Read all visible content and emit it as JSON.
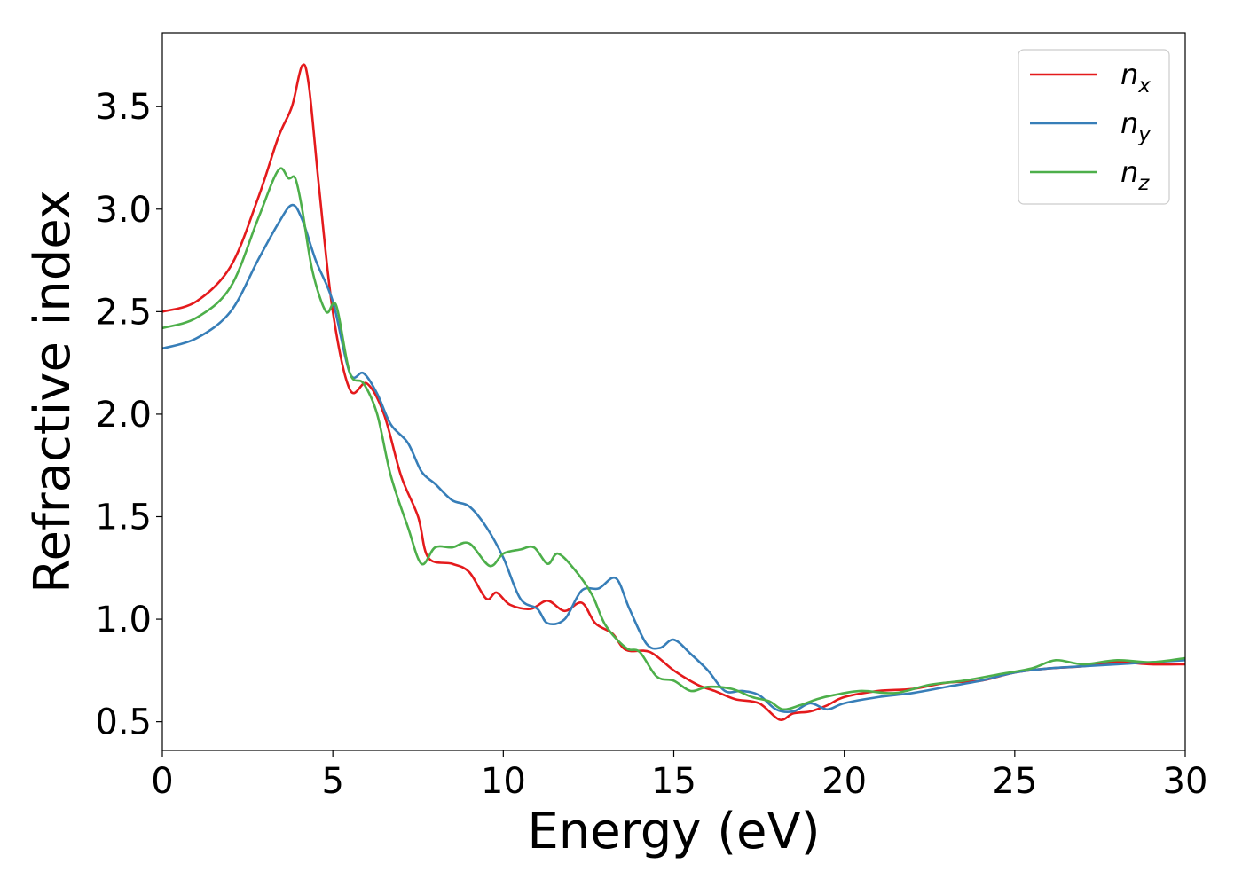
{
  "chart_data": {
    "type": "line",
    "xlabel": "Energy (eV)",
    "ylabel": "Refractive index",
    "xlim": [
      0,
      30
    ],
    "ylim": [
      0.36,
      3.86
    ],
    "xticks": [
      "0",
      "5",
      "10",
      "15",
      "20",
      "25",
      "30"
    ],
    "yticks": [
      "0.5",
      "1.0",
      "1.5",
      "2.0",
      "2.5",
      "3.0",
      "3.5"
    ],
    "grid": false,
    "legend_position": "top-right",
    "series": [
      {
        "name": "n",
        "subscript": "x",
        "color": "#e41a1c",
        "points": [
          [
            0,
            2.5
          ],
          [
            1,
            2.55
          ],
          [
            2,
            2.72
          ],
          [
            2.8,
            3.05
          ],
          [
            3.4,
            3.35
          ],
          [
            3.8,
            3.5
          ],
          [
            4.1,
            3.7
          ],
          [
            4.3,
            3.6
          ],
          [
            4.6,
            3.1
          ],
          [
            5.0,
            2.5
          ],
          [
            5.5,
            2.12
          ],
          [
            6.0,
            2.15
          ],
          [
            6.5,
            2.0
          ],
          [
            7.0,
            1.7
          ],
          [
            7.5,
            1.5
          ],
          [
            7.8,
            1.3
          ],
          [
            8.5,
            1.27
          ],
          [
            9,
            1.23
          ],
          [
            9.5,
            1.1
          ],
          [
            9.8,
            1.13
          ],
          [
            10.2,
            1.07
          ],
          [
            10.8,
            1.05
          ],
          [
            11.3,
            1.09
          ],
          [
            11.8,
            1.04
          ],
          [
            12.3,
            1.08
          ],
          [
            12.7,
            0.98
          ],
          [
            13.2,
            0.93
          ],
          [
            13.6,
            0.85
          ],
          [
            14.3,
            0.84
          ],
          [
            15,
            0.75
          ],
          [
            15.7,
            0.68
          ],
          [
            16.2,
            0.65
          ],
          [
            16.8,
            0.61
          ],
          [
            17.5,
            0.59
          ],
          [
            18.1,
            0.51
          ],
          [
            18.5,
            0.54
          ],
          [
            19,
            0.55
          ],
          [
            19.5,
            0.58
          ],
          [
            20,
            0.62
          ],
          [
            21,
            0.65
          ],
          [
            22,
            0.66
          ],
          [
            23,
            0.69
          ],
          [
            24,
            0.7
          ],
          [
            25,
            0.74
          ],
          [
            26,
            0.76
          ],
          [
            27,
            0.77
          ],
          [
            28,
            0.79
          ],
          [
            29,
            0.78
          ],
          [
            30,
            0.78
          ]
        ]
      },
      {
        "name": "n",
        "subscript": "y",
        "color": "#377eb8",
        "points": [
          [
            0,
            2.32
          ],
          [
            1,
            2.37
          ],
          [
            2,
            2.5
          ],
          [
            2.8,
            2.75
          ],
          [
            3.4,
            2.93
          ],
          [
            3.8,
            3.02
          ],
          [
            4.1,
            2.95
          ],
          [
            4.5,
            2.75
          ],
          [
            5.0,
            2.55
          ],
          [
            5.5,
            2.2
          ],
          [
            5.9,
            2.2
          ],
          [
            6.3,
            2.1
          ],
          [
            6.7,
            1.95
          ],
          [
            7.2,
            1.86
          ],
          [
            7.6,
            1.72
          ],
          [
            8.0,
            1.66
          ],
          [
            8.5,
            1.58
          ],
          [
            9,
            1.55
          ],
          [
            9.5,
            1.45
          ],
          [
            10,
            1.3
          ],
          [
            10.5,
            1.1
          ],
          [
            11.0,
            1.05
          ],
          [
            11.3,
            0.98
          ],
          [
            11.8,
            1.0
          ],
          [
            12.3,
            1.14
          ],
          [
            12.8,
            1.15
          ],
          [
            13.3,
            1.2
          ],
          [
            13.7,
            1.05
          ],
          [
            14.2,
            0.88
          ],
          [
            14.6,
            0.86
          ],
          [
            15,
            0.9
          ],
          [
            15.5,
            0.83
          ],
          [
            16,
            0.75
          ],
          [
            16.5,
            0.65
          ],
          [
            17,
            0.65
          ],
          [
            17.5,
            0.63
          ],
          [
            18,
            0.56
          ],
          [
            18.5,
            0.55
          ],
          [
            19,
            0.59
          ],
          [
            19.5,
            0.56
          ],
          [
            20,
            0.59
          ],
          [
            21,
            0.62
          ],
          [
            22,
            0.64
          ],
          [
            23,
            0.67
          ],
          [
            24,
            0.7
          ],
          [
            25,
            0.74
          ],
          [
            26,
            0.76
          ],
          [
            27,
            0.77
          ],
          [
            28,
            0.78
          ],
          [
            29,
            0.79
          ],
          [
            30,
            0.8
          ]
        ]
      },
      {
        "name": "n",
        "subscript": "z",
        "color": "#4daf4a",
        "points": [
          [
            0,
            2.42
          ],
          [
            1,
            2.47
          ],
          [
            2,
            2.62
          ],
          [
            2.8,
            2.95
          ],
          [
            3.4,
            3.19
          ],
          [
            3.7,
            3.15
          ],
          [
            3.9,
            3.15
          ],
          [
            4.1,
            3.0
          ],
          [
            4.4,
            2.7
          ],
          [
            4.8,
            2.5
          ],
          [
            5.1,
            2.53
          ],
          [
            5.5,
            2.2
          ],
          [
            5.9,
            2.15
          ],
          [
            6.3,
            2.0
          ],
          [
            6.7,
            1.7
          ],
          [
            7.2,
            1.45
          ],
          [
            7.6,
            1.27
          ],
          [
            8,
            1.35
          ],
          [
            8.5,
            1.35
          ],
          [
            9,
            1.37
          ],
          [
            9.6,
            1.26
          ],
          [
            10,
            1.32
          ],
          [
            10.5,
            1.34
          ],
          [
            10.9,
            1.35
          ],
          [
            11.3,
            1.27
          ],
          [
            11.6,
            1.32
          ],
          [
            12.1,
            1.24
          ],
          [
            12.6,
            1.12
          ],
          [
            13,
            0.97
          ],
          [
            13.6,
            0.86
          ],
          [
            14,
            0.84
          ],
          [
            14.5,
            0.72
          ],
          [
            15,
            0.7
          ],
          [
            15.5,
            0.65
          ],
          [
            16,
            0.67
          ],
          [
            16.7,
            0.66
          ],
          [
            17.3,
            0.62
          ],
          [
            17.8,
            0.6
          ],
          [
            18.2,
            0.56
          ],
          [
            18.7,
            0.58
          ],
          [
            19.2,
            0.61
          ],
          [
            19.7,
            0.63
          ],
          [
            20.5,
            0.65
          ],
          [
            21.5,
            0.64
          ],
          [
            22.5,
            0.68
          ],
          [
            23.5,
            0.7
          ],
          [
            24.5,
            0.73
          ],
          [
            25.5,
            0.76
          ],
          [
            26.2,
            0.8
          ],
          [
            27,
            0.78
          ],
          [
            28,
            0.8
          ],
          [
            29,
            0.79
          ],
          [
            30,
            0.81
          ]
        ]
      }
    ]
  }
}
